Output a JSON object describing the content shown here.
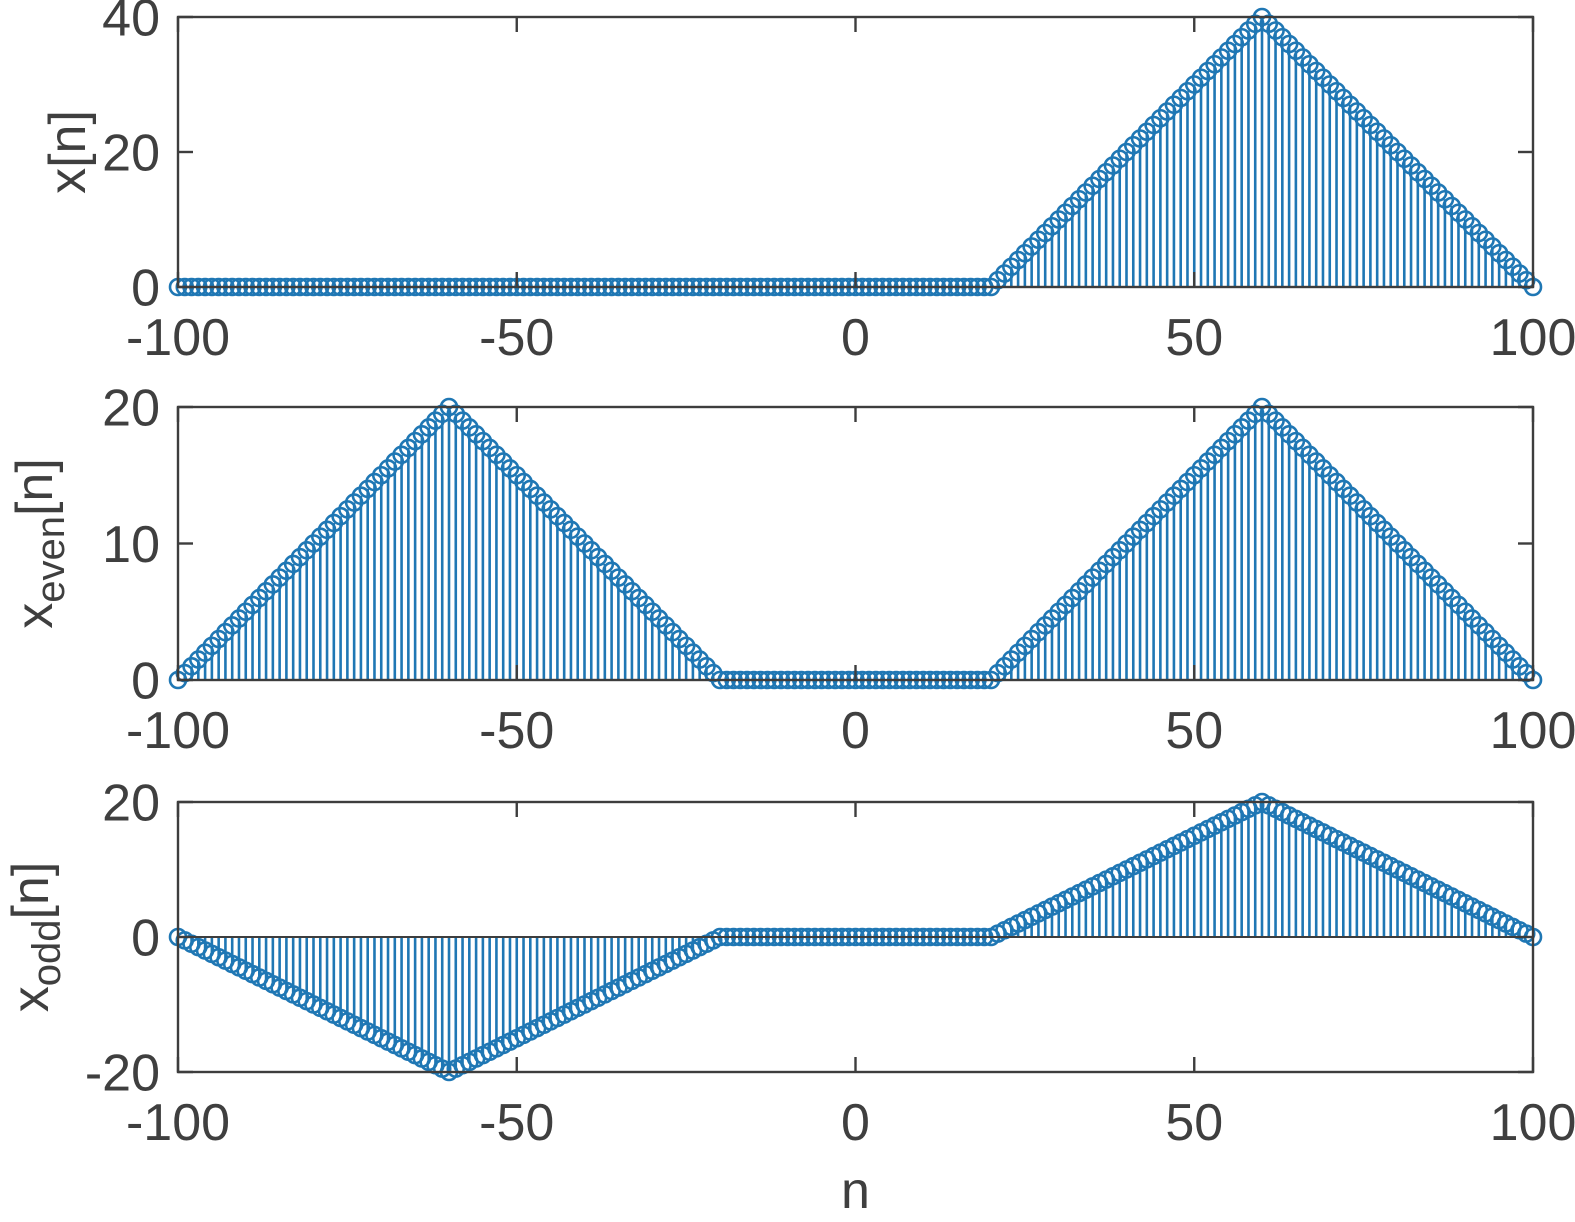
{
  "figure": {
    "background": "#ffffff",
    "stem_color": "#1f77b4",
    "axis_color": "#3d3d3d",
    "text_color": "#3f3f3f",
    "xlabel": "n"
  },
  "chart_data": [
    {
      "type": "stem",
      "name": "x",
      "ylabel": {
        "base": "x",
        "subscript": "",
        "suffix": "[n]"
      },
      "xlabel": "",
      "xlim": [
        -100,
        100
      ],
      "ylim": [
        0,
        40
      ],
      "xtick_labels": [
        "-100",
        "-50",
        "0",
        "50",
        "100"
      ],
      "xticks": [
        -100,
        -50,
        0,
        50,
        100
      ],
      "ytick_labels": [
        "0",
        "20",
        "40"
      ],
      "yticks": [
        0,
        20,
        40
      ],
      "grid": false,
      "legend": null,
      "n_start": -100,
      "n_end": 100,
      "n_step": 1,
      "breakpoints": [
        [
          -100,
          0
        ],
        [
          20,
          0
        ],
        [
          60,
          40
        ],
        [
          100,
          0
        ]
      ]
    },
    {
      "type": "stem",
      "name": "x-even",
      "ylabel": {
        "base": "x",
        "subscript": "even",
        "suffix": "[n]"
      },
      "xlabel": "",
      "xlim": [
        -100,
        100
      ],
      "ylim": [
        0,
        20
      ],
      "xtick_labels": [
        "-100",
        "-50",
        "0",
        "50",
        "100"
      ],
      "xticks": [
        -100,
        -50,
        0,
        50,
        100
      ],
      "ytick_labels": [
        "0",
        "10",
        "20"
      ],
      "yticks": [
        0,
        10,
        20
      ],
      "grid": false,
      "legend": null,
      "n_start": -100,
      "n_end": 100,
      "n_step": 1,
      "breakpoints": [
        [
          -100,
          0
        ],
        [
          -60,
          20
        ],
        [
          -20,
          0
        ],
        [
          20,
          0
        ],
        [
          60,
          20
        ],
        [
          100,
          0
        ]
      ]
    },
    {
      "type": "stem",
      "name": "x-odd",
      "ylabel": {
        "base": "x",
        "subscript": "odd",
        "suffix": "[n]"
      },
      "xlabel": "n",
      "xlim": [
        -100,
        100
      ],
      "ylim": [
        -20,
        20
      ],
      "xtick_labels": [
        "-100",
        "-50",
        "0",
        "50",
        "100"
      ],
      "xticks": [
        -100,
        -50,
        0,
        50,
        100
      ],
      "ytick_labels": [
        "-20",
        "0",
        "20"
      ],
      "yticks": [
        -20,
        0,
        20
      ],
      "grid": false,
      "legend": null,
      "n_start": -100,
      "n_end": 100,
      "n_step": 1,
      "breakpoints": [
        [
          -100,
          0
        ],
        [
          -60,
          -20
        ],
        [
          -20,
          0
        ],
        [
          20,
          0
        ],
        [
          60,
          20
        ],
        [
          100,
          0
        ]
      ]
    }
  ]
}
